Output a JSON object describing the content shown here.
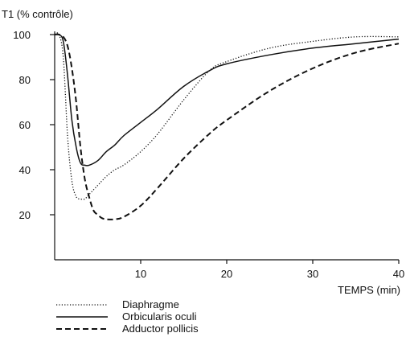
{
  "chart_data": {
    "type": "line",
    "ylabel": "T1 (% contrôle)",
    "xlabel": "TEMPS (min)",
    "xlim": [
      0,
      40
    ],
    "ylim": [
      0,
      100
    ],
    "x_ticks": [
      10,
      20,
      30,
      40
    ],
    "y_ticks": [
      20,
      40,
      60,
      80,
      100
    ],
    "grid": false,
    "legend_position": "bottom-left",
    "series": [
      {
        "name": "Diaphragme",
        "style": "dotted",
        "color": "#111111",
        "x": [
          0,
          0.5,
          1.0,
          1.5,
          2.0,
          2.5,
          3.0,
          3.5,
          4.0,
          5.0,
          6.0,
          7.0,
          8.0,
          10.0,
          12.0,
          15.0,
          18.0,
          20.0,
          25.0,
          30.0,
          35.0,
          40.0
        ],
        "y": [
          100,
          100,
          90,
          55,
          35,
          28,
          27,
          27,
          29,
          33,
          37,
          40,
          42,
          48,
          56,
          71,
          84,
          88,
          94,
          97,
          99,
          99
        ]
      },
      {
        "name": "Orbicularis oculi",
        "style": "solid",
        "color": "#111111",
        "x": [
          0,
          0.5,
          1.0,
          1.5,
          2.0,
          2.5,
          3.0,
          3.5,
          4.0,
          5.0,
          6.0,
          7.0,
          8.0,
          10.0,
          12.0,
          15.0,
          18.0,
          20.0,
          25.0,
          30.0,
          35.0,
          40.0
        ],
        "y": [
          100,
          100,
          97,
          82,
          62,
          50,
          43,
          42,
          42,
          44,
          48,
          51,
          55,
          61,
          67,
          77,
          84,
          87,
          91,
          94,
          96,
          98
        ]
      },
      {
        "name": "Adductor pollicis",
        "style": "dashed",
        "color": "#111111",
        "x": [
          0,
          0.5,
          1.0,
          1.5,
          2.0,
          2.5,
          3.0,
          3.5,
          4.0,
          4.5,
          5.0,
          5.5,
          6.0,
          7.0,
          8.0,
          10.0,
          12.0,
          15.0,
          18.0,
          20.0,
          25.0,
          30.0,
          35.0,
          40.0
        ],
        "y": [
          100,
          100,
          99,
          95,
          85,
          70,
          50,
          36,
          28,
          22,
          20,
          18.5,
          18,
          18,
          19,
          24,
          32,
          45,
          56,
          62,
          75,
          85,
          92,
          96
        ]
      }
    ]
  }
}
